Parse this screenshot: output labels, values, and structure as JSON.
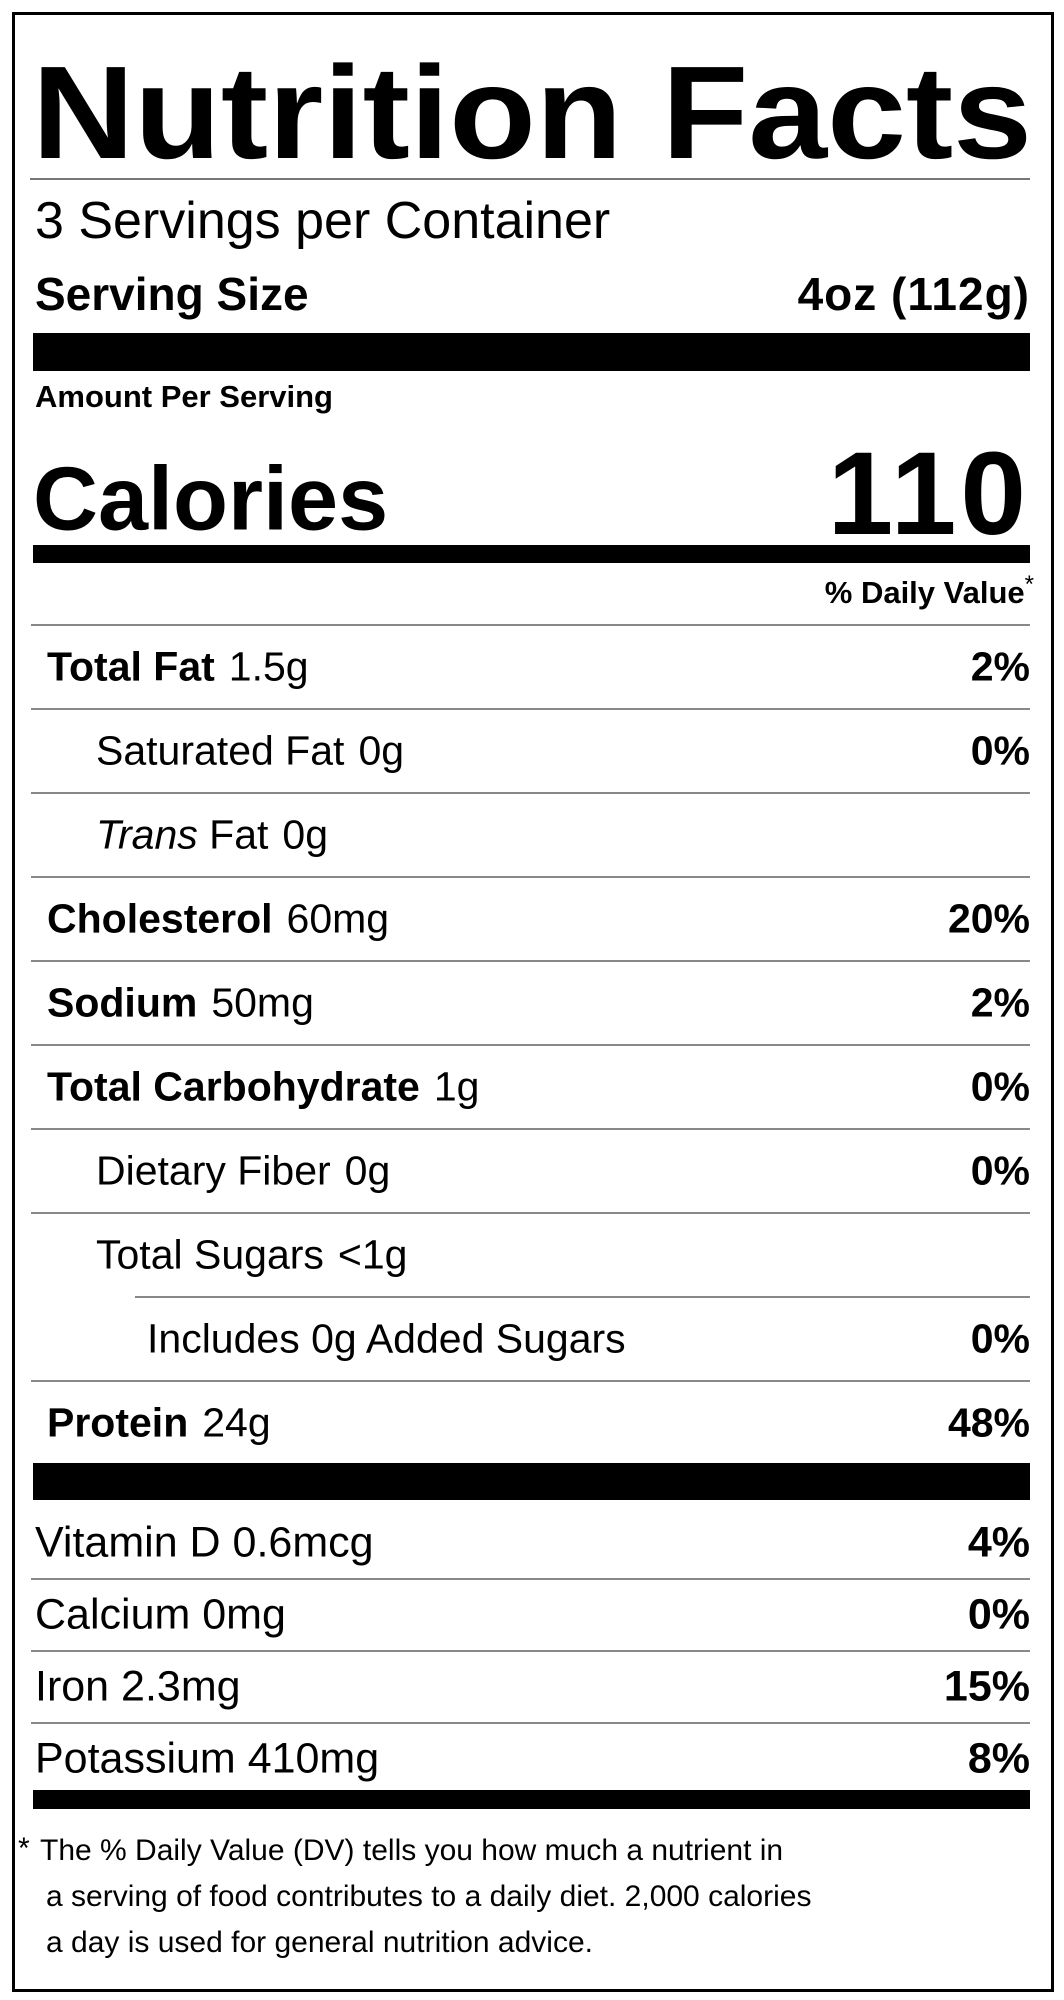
{
  "title": "Nutrition Facts",
  "servings": "3 Servings per Container",
  "serving_size": {
    "label": "Serving Size",
    "value": "4oz (112g)"
  },
  "amount_per_serving": "Amount Per Serving",
  "calories": {
    "label": "Calories",
    "value": "110"
  },
  "daily_value_header": {
    "text": "% Daily Value",
    "mark": "*"
  },
  "nutrients": [
    {
      "name": "Total Fat",
      "amount": "1.5g",
      "dv": "2%",
      "sub": [
        {
          "name": "Saturated Fat",
          "amount": "0g",
          "dv": "0%"
        },
        {
          "name_italic": "Trans",
          "name": "Fat",
          "amount": "0g"
        }
      ]
    },
    {
      "name": "Cholesterol",
      "amount": "60mg",
      "dv": "20%"
    },
    {
      "name": "Sodium",
      "amount": "50mg",
      "dv": "2%"
    },
    {
      "name": "Total Carbohydrate",
      "amount": "1g",
      "dv": "0%",
      "sub": [
        {
          "name": "Dietary Fiber",
          "amount": "0g",
          "dv": "0%"
        },
        {
          "name": "Total Sugars",
          "amount": "<1g",
          "sub": [
            {
              "name": "Includes 0g Added Sugars",
              "dv": "0%"
            }
          ]
        }
      ]
    },
    {
      "name": "Protein",
      "amount": "24g",
      "dv": "48%"
    }
  ],
  "vitamins": [
    {
      "name": "Vitamin D 0.6mcg",
      "dv": "4%"
    },
    {
      "name": "Calcium 0mg",
      "dv": "0%"
    },
    {
      "name": "Iron 2.3mg",
      "dv": "15%"
    },
    {
      "name": "Potassium 410mg",
      "dv": "8%"
    }
  ],
  "footnote": {
    "mark": "*",
    "lines": [
      "The % Daily Value (DV) tells you how much a nutrient in",
      "a serving of food contributes to a daily diet. 2,000 calories",
      "a day is used for general nutrition advice."
    ]
  }
}
